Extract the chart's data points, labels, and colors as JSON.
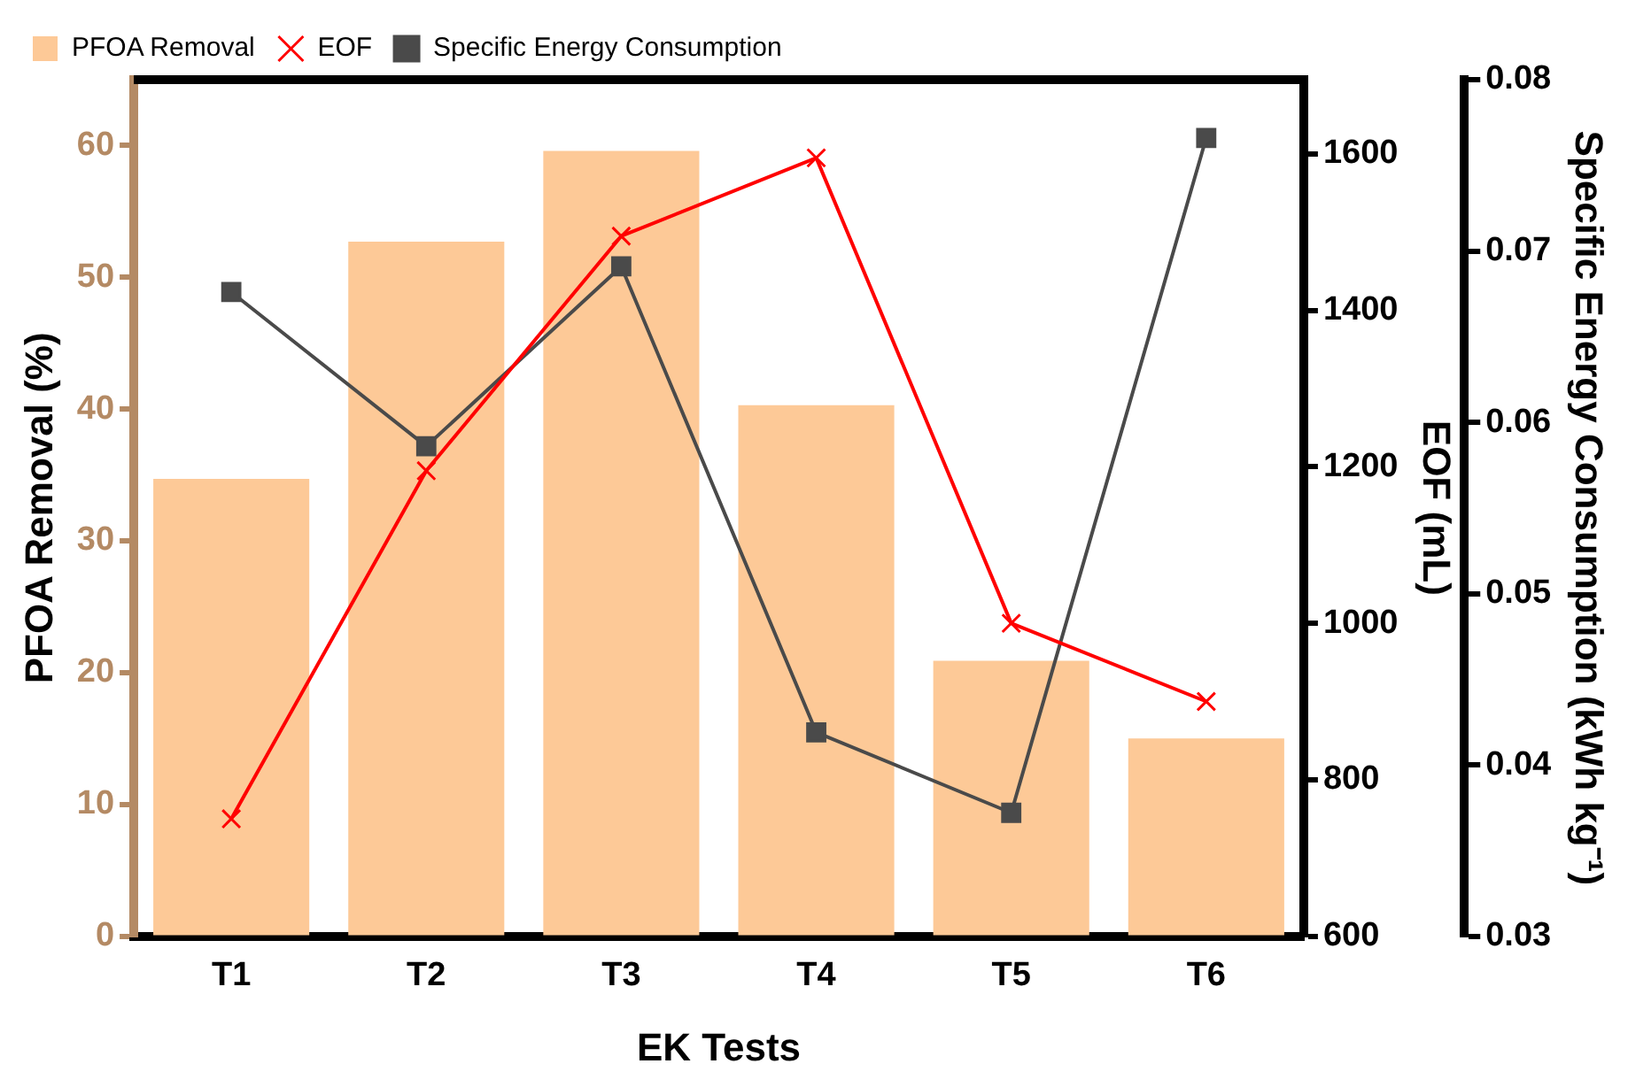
{
  "chart_data": {
    "type": "bar",
    "xlabel": "EK Tests",
    "ylabel": "PFOA Removal (%)",
    "y2label": "EOF (mL)",
    "y3label": "Specific Energy Consumption (kWh kg⁻¹)",
    "categories": [
      "T1",
      "T2",
      "T3",
      "T4",
      "T5",
      "T6"
    ],
    "series": [
      {
        "name": "PFOA Removal",
        "color": "#fdc997",
        "values": [
          34.7,
          52.7,
          59.6,
          40.3,
          20.9,
          15.0
        ]
      },
      {
        "name": "EOF",
        "type": "line",
        "axis": "y2",
        "color": "#ff0000",
        "marker": "cross",
        "values": [
          750,
          1195,
          1495,
          1595,
          1000,
          900
        ]
      },
      {
        "name": "Specific Energy Consumption",
        "type": "line",
        "axis": "y3",
        "color": "#4a4a4a",
        "marker": "square",
        "values": [
          0.0676,
          0.0586,
          0.0691,
          0.0419,
          0.0372,
          0.0766
        ]
      }
    ],
    "ylim": [
      0,
      65
    ],
    "yticks": [
      0,
      10,
      20,
      30,
      40,
      50,
      60
    ],
    "y2lim": [
      600,
      1695
    ],
    "y2ticks": [
      600,
      800,
      1000,
      1200,
      1400,
      1600
    ],
    "y3lim": [
      0.03,
      0.08
    ],
    "y3ticks": [
      0.03,
      0.04,
      0.05,
      0.06,
      0.07,
      0.08
    ],
    "legend": "top left",
    "grid": false
  }
}
